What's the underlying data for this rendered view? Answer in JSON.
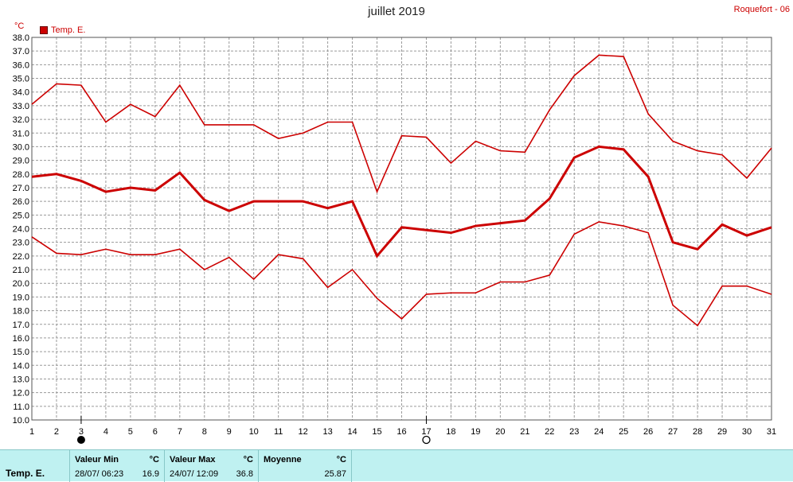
{
  "title": "juillet 2019",
  "station": "Roquefort - 06",
  "unit": "°C",
  "legend": {
    "label": "Temp. E.",
    "color": "#cc0000"
  },
  "stats": {
    "sensor": "Temp. E.",
    "min": {
      "label": "Valeur Min",
      "unit": "°C",
      "datetime": "28/07/ 06:23",
      "value": "16.9"
    },
    "max": {
      "label": "Valeur Max",
      "unit": "°C",
      "datetime": "24/07/ 12:09",
      "value": "36.8"
    },
    "mean": {
      "label": "Moyenne",
      "unit": "°C",
      "value": "25.87"
    }
  },
  "moon_markers": [
    {
      "day": 3,
      "phase": "new-moon"
    },
    {
      "day": 17,
      "phase": "full-moon"
    }
  ],
  "chart_data": {
    "type": "line",
    "x": [
      1,
      2,
      3,
      4,
      5,
      6,
      7,
      8,
      9,
      10,
      11,
      12,
      13,
      14,
      15,
      16,
      17,
      18,
      19,
      20,
      21,
      22,
      23,
      24,
      25,
      26,
      27,
      28,
      29,
      30,
      31
    ],
    "xlim": [
      1,
      31
    ],
    "ylim": [
      10,
      38
    ],
    "yticks_step": 1,
    "grid": true,
    "legend_position": "top-left",
    "series": [
      {
        "style": "max",
        "values": [
          33.1,
          34.6,
          34.5,
          31.8,
          33.1,
          32.2,
          34.5,
          31.6,
          31.6,
          31.6,
          30.6,
          31.0,
          31.8,
          31.8,
          26.7,
          30.8,
          30.7,
          28.8,
          30.4,
          29.7,
          29.6,
          32.7,
          35.2,
          36.7,
          36.6,
          32.4,
          30.4,
          29.7,
          29.4,
          27.7,
          29.9
        ]
      },
      {
        "style": "mean",
        "values": [
          27.8,
          28.0,
          27.5,
          26.7,
          27.0,
          26.8,
          28.1,
          26.1,
          25.3,
          26.0,
          26.0,
          26.0,
          25.5,
          26.0,
          22.0,
          24.1,
          23.9,
          23.7,
          24.2,
          24.4,
          24.6,
          26.2,
          29.2,
          30.0,
          29.8,
          27.8,
          23.0,
          22.5,
          24.3,
          23.5,
          24.1
        ]
      },
      {
        "style": "min",
        "values": [
          23.4,
          22.2,
          22.1,
          22.5,
          22.1,
          22.1,
          22.5,
          21.0,
          21.9,
          20.3,
          22.1,
          21.8,
          19.7,
          21.0,
          18.9,
          17.4,
          19.2,
          19.3,
          19.3,
          20.1,
          20.1,
          20.6,
          23.6,
          24.5,
          24.2,
          23.7,
          18.4,
          16.9,
          19.8,
          19.8,
          19.2
        ]
      }
    ]
  }
}
